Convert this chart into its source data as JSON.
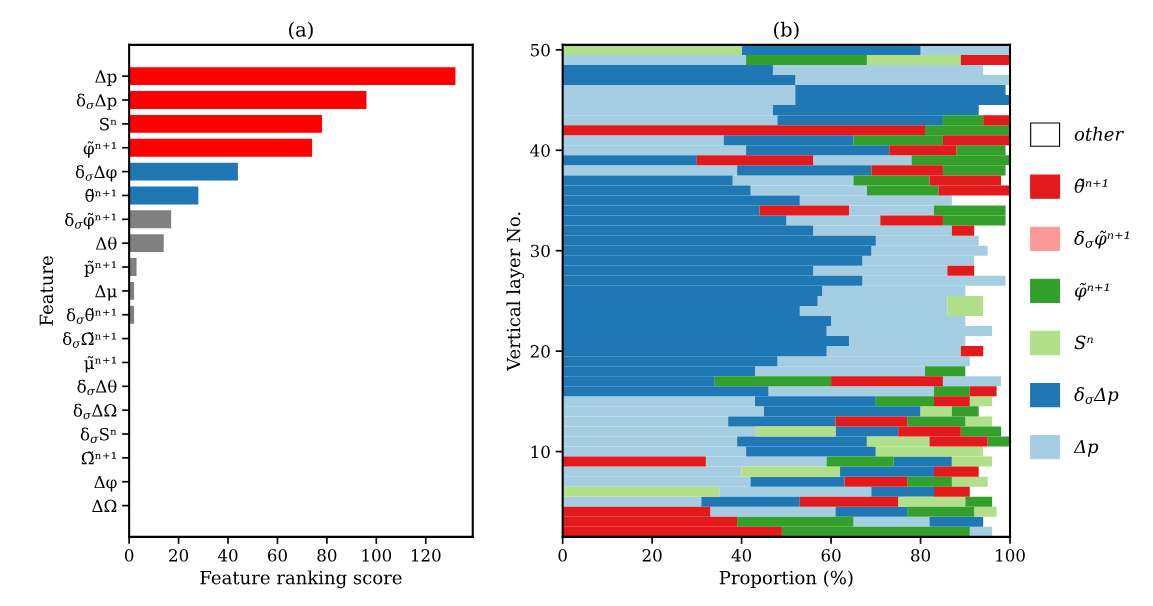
{
  "chart_data": [
    {
      "type": "bar",
      "orientation": "horizontal",
      "title": "(a)",
      "xlabel": "Feature ranking score",
      "ylabel": "Feature",
      "categories": [
        "Δp",
        "δ$_{σ}$Δp",
        "Sⁿ",
        "φ̃ⁿ⁺¹",
        "δ$_{σ}$Δφ",
        "θ̃ⁿ⁺¹",
        "δ$_{σ}$φ̃ⁿ⁺¹",
        "Δθ",
        "p̃ⁿ⁺¹",
        "Δμ",
        "δ$_{σ}$θ̃ⁿ⁺¹",
        "δ$_{σ}$Ω̃ⁿ⁺¹",
        "μ̃ⁿ⁺¹",
        "δ$_{σ}$Δθ",
        "δ$_{σ}$ΔΩ",
        "δ$_{σ}$Sⁿ",
        "Ω̃ⁿ⁺¹",
        "Δφ",
        "ΔΩ"
      ],
      "values": [
        132,
        96,
        78,
        74,
        44,
        28,
        17,
        14,
        3,
        2,
        2,
        0,
        0,
        0,
        0,
        0,
        0,
        0,
        0
      ],
      "colors": [
        "#ff0000",
        "#ff0000",
        "#ff0000",
        "#ff0000",
        "#1f77b4",
        "#1f77b4",
        "#808080",
        "#808080",
        "#808080",
        "#808080",
        "#808080",
        "#808080",
        "#808080",
        "#808080",
        "#808080",
        "#808080",
        "#808080",
        "#808080",
        "#808080"
      ],
      "xlim": [
        0,
        139
      ],
      "xticks": [
        0,
        20,
        40,
        60,
        80,
        100,
        120
      ]
    },
    {
      "type": "bar",
      "orientation": "horizontal",
      "title": "(b)",
      "xlabel": "Proportion (%)",
      "ylabel": "Vertical layer No.",
      "legend": "right",
      "x": [
        2,
        3,
        4,
        5,
        6,
        7,
        8,
        9,
        10,
        11,
        12,
        13,
        14,
        15,
        16,
        17,
        18,
        19,
        20,
        21,
        22,
        23,
        24,
        25,
        26,
        27,
        28,
        29,
        30,
        31,
        32,
        33,
        34,
        35,
        36,
        37,
        38,
        39,
        40,
        41,
        42,
        43,
        44,
        45,
        46,
        47,
        48,
        49,
        50
      ],
      "series": [
        {
          "name": "Δp",
          "color": "#a6cee3",
          "base": [
            91,
            65,
            33,
            0,
            35,
            0,
            0,
            32,
            0,
            0,
            0,
            0,
            0,
            0,
            46,
            85,
            43,
            48,
            59,
            64,
            59,
            60,
            53,
            57,
            58,
            67,
            56,
            67,
            69,
            70,
            56,
            50,
            64,
            53,
            42,
            38,
            0,
            56,
            0,
            0,
            null,
            0,
            0,
            0,
            0,
            52,
            47,
            0,
            80
          ],
          "values": [
            5,
            17,
            28,
            31,
            34,
            42,
            40,
            27,
            41,
            39,
            43,
            37,
            45,
            43,
            37,
            13,
            38,
            43,
            30,
            26,
            37,
            30,
            33,
            29,
            32,
            32,
            30,
            25,
            26,
            23,
            31,
            21,
            19,
            34,
            26,
            27,
            39,
            22,
            41,
            36,
            null,
            48,
            47,
            52,
            52,
            48,
            47,
            41,
            20
          ]
        },
        {
          "name": "δ$_{σ}$Δp",
          "color": "#1f78b4",
          "base": [
            null,
            82,
            61,
            31,
            69,
            42,
            62,
            74,
            41,
            39,
            61,
            37,
            45,
            43,
            0,
            0,
            0,
            0,
            0,
            0,
            0,
            0,
            0,
            0,
            0,
            0,
            0,
            0,
            0,
            0,
            0,
            0,
            0,
            0,
            0,
            0,
            39,
            0,
            41,
            36,
            null,
            48,
            47,
            52,
            52,
            0,
            0,
            null,
            40
          ],
          "values": [
            null,
            12,
            16,
            22,
            14,
            21,
            21,
            13,
            29,
            29,
            14,
            24,
            35,
            27,
            46,
            34,
            43,
            48,
            59,
            64,
            59,
            60,
            53,
            57,
            58,
            67,
            56,
            67,
            69,
            70,
            56,
            50,
            44,
            53,
            42,
            38,
            30,
            30,
            32,
            29,
            null,
            37,
            46,
            48,
            47,
            52,
            47,
            null,
            40
          ]
        },
        {
          "name": "Sⁿ",
          "color": "#b2df8a",
          "base": [
            null,
            null,
            92,
            75,
            0,
            87,
            40,
            87,
            70,
            68,
            43,
            90,
            80,
            91,
            null,
            null,
            null,
            null,
            null,
            null,
            null,
            null,
            86,
            86,
            null,
            null,
            null,
            null,
            null,
            null,
            null,
            null,
            null,
            null,
            null,
            null,
            null,
            null,
            null,
            null,
            null,
            null,
            null,
            null,
            null,
            null,
            null,
            68,
            0
          ],
          "values": [
            null,
            null,
            5,
            15,
            35,
            8,
            22,
            9,
            24,
            14,
            18,
            6,
            7,
            5,
            null,
            null,
            null,
            null,
            null,
            null,
            null,
            null,
            8,
            8,
            null,
            null,
            null,
            null,
            null,
            null,
            null,
            null,
            null,
            null,
            null,
            null,
            null,
            null,
            null,
            null,
            null,
            null,
            null,
            null,
            null,
            null,
            null,
            21,
            40
          ]
        },
        {
          "name": "φ̃ⁿ⁺¹",
          "color": "#33a02c",
          "base": [
            49,
            39,
            77,
            90,
            null,
            77,
            null,
            59,
            null,
            95,
            89,
            77,
            87,
            70,
            83,
            34,
            81,
            null,
            null,
            null,
            null,
            null,
            null,
            null,
            null,
            null,
            null,
            null,
            null,
            null,
            null,
            85,
            83,
            null,
            68,
            65,
            85,
            78,
            88,
            65,
            81,
            85,
            null,
            null,
            null,
            null,
            null,
            41,
            null
          ],
          "values": [
            42,
            26,
            15,
            6,
            null,
            10,
            null,
            15,
            null,
            5,
            9,
            13,
            6,
            13,
            8,
            26,
            9,
            null,
            null,
            null,
            null,
            null,
            null,
            null,
            null,
            null,
            null,
            null,
            null,
            null,
            null,
            14,
            16,
            null,
            16,
            17,
            14,
            22,
            11,
            20,
            19,
            9,
            null,
            null,
            null,
            null,
            null,
            27,
            null
          ]
        },
        {
          "name": "δ$_{σ}$φ̃ⁿ⁺¹",
          "color": "#fb9a99",
          "base": [
            null,
            null,
            null,
            null,
            null,
            null,
            null,
            null,
            null,
            null,
            null,
            null,
            null,
            null,
            null,
            null,
            null,
            null,
            null,
            null,
            null,
            null,
            null,
            null,
            null,
            null,
            null,
            null,
            null,
            null,
            null,
            null,
            null,
            null,
            null,
            null,
            null,
            null,
            null,
            null,
            null,
            null,
            null,
            null,
            null,
            null,
            null,
            null,
            null
          ],
          "values": [
            null,
            null,
            null,
            null,
            null,
            null,
            null,
            null,
            null,
            null,
            null,
            null,
            null,
            null,
            null,
            null,
            null,
            null,
            null,
            null,
            null,
            null,
            null,
            null,
            null,
            null,
            null,
            null,
            null,
            null,
            null,
            null,
            null,
            null,
            null,
            null,
            null,
            null,
            null,
            null,
            null,
            null,
            null,
            null,
            null,
            null,
            null,
            null,
            null
          ]
        },
        {
          "name": "θ̃ⁿ⁺¹",
          "color": "#e31a1c",
          "base": [
            0,
            0,
            0,
            53,
            83,
            63,
            83,
            0,
            null,
            82,
            75,
            61,
            null,
            83,
            91,
            60,
            null,
            null,
            89,
            null,
            null,
            null,
            null,
            null,
            null,
            null,
            86,
            null,
            null,
            null,
            87,
            71,
            44,
            null,
            84,
            82,
            69,
            30,
            73,
            85,
            0,
            94,
            null,
            null,
            null,
            null,
            null,
            89,
            null
          ],
          "values": [
            49,
            39,
            33,
            22,
            8,
            14,
            10,
            32,
            null,
            13,
            14,
            16,
            null,
            8,
            6,
            25,
            null,
            null,
            5,
            null,
            null,
            null,
            null,
            null,
            null,
            null,
            6,
            null,
            null,
            null,
            5,
            14,
            20,
            null,
            16,
            16,
            16,
            26,
            15,
            15,
            81,
            6,
            null,
            null,
            null,
            null,
            null,
            11,
            null
          ]
        },
        {
          "name": "other",
          "color": "#ffffff",
          "base": [
            null,
            null,
            null,
            null,
            null,
            null,
            null,
            null,
            null,
            null,
            null,
            null,
            null,
            null,
            null,
            null,
            null,
            null,
            null,
            null,
            null,
            null,
            null,
            null,
            null,
            null,
            null,
            null,
            null,
            null,
            null,
            null,
            null,
            null,
            null,
            null,
            null,
            null,
            null,
            null,
            null,
            null,
            null,
            null,
            null,
            null,
            null,
            null,
            null
          ],
          "values": [
            null,
            null,
            null,
            null,
            null,
            null,
            null,
            null,
            null,
            null,
            null,
            null,
            null,
            null,
            null,
            null,
            null,
            null,
            null,
            null,
            null,
            null,
            null,
            null,
            null,
            null,
            null,
            null,
            null,
            null,
            null,
            null,
            null,
            null,
            null,
            null,
            null,
            null,
            null,
            null,
            null,
            null,
            null,
            null,
            null,
            null,
            null,
            null,
            null
          ]
        }
      ],
      "xlim": [
        0,
        100
      ],
      "xticks": [
        0,
        20,
        40,
        60,
        80,
        100
      ],
      "ylim": [
        1.5,
        50.5
      ],
      "yticks": [
        10,
        20,
        30,
        40,
        50
      ]
    }
  ]
}
